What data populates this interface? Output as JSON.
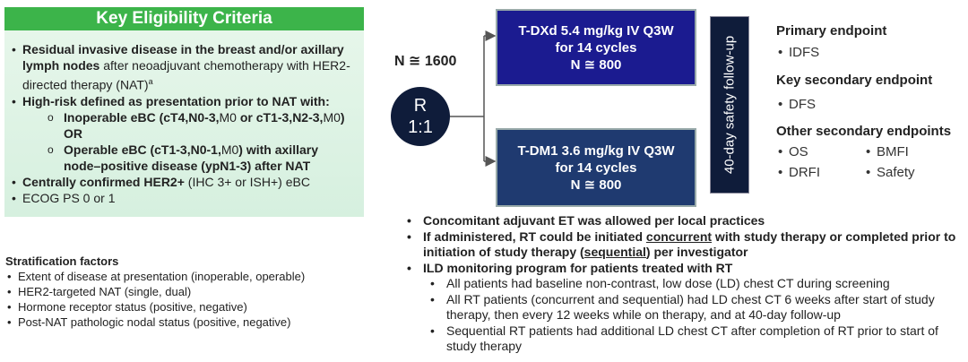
{
  "eligibility": {
    "title": "Key Eligibility Criteria",
    "items": [
      [
        "Residual invasive disease in the breast and/or axillary lymph nodes",
        " after neoadjuvant chemotherapy with HER2-directed therapy (NAT)",
        "a"
      ],
      [
        "High-risk defined as presentation prior to NAT with:"
      ],
      [
        "Centrally confirmed HER2+",
        " (IHC 3+ or ISH+) eBC"
      ],
      [
        "ECOG PS 0 or 1"
      ]
    ],
    "subitems": [
      [
        "Inoperable eBC (cT4,N0-3,",
        "M0",
        " or cT1-3,N2-3,",
        "M0",
        ")",
        "OR"
      ],
      [
        "Operable eBC (cT1-3,N0-1,",
        "M0",
        ") with axillary node–positive disease (ypN1-3) after NAT"
      ]
    ]
  },
  "stratification": {
    "title": "Stratification factors",
    "items": [
      "Extent of disease at presentation (inoperable, operable)",
      "HER2-targeted NAT (single, dual)",
      "Hormone receptor status (positive, negative)",
      "Post-NAT pathologic nodal status (positive, negative)"
    ]
  },
  "design": {
    "n": "N ≅ 1600",
    "randomization": [
      "R",
      "1:1"
    ],
    "arms": [
      [
        "T-DXd 5.4 mg/kg IV Q3W",
        "for 14 cycles",
        "N ≅ 800"
      ],
      [
        "T-DM1 3.6 mg/kg IV Q3W",
        "for 14 cycles",
        "N ≅ 800"
      ]
    ],
    "follow_up": "40-day safety follow-up"
  },
  "endpoints": [
    {
      "title": "Primary endpoint",
      "items": [
        "IDFS"
      ]
    },
    {
      "title": "Key secondary endpoint",
      "items": [
        "DFS"
      ]
    },
    {
      "title": "Other secondary endpoints",
      "items": [
        "OS",
        "BMFI",
        "DRFI",
        "Safety"
      ]
    }
  ],
  "notes": {
    "items": [
      [
        "Concomitant adjuvant ET was allowed per local practices"
      ],
      [
        "If administered, RT could be initiated ",
        "concurrent",
        " with study therapy or completed prior to initiation of study therapy (",
        "sequential",
        ") per investigator"
      ],
      [
        "ILD monitoring program for patients treated with RT"
      ]
    ],
    "subitems": [
      "All patients had baseline non-contrast, low dose (LD) chest CT during screening",
      "All RT patients (concurrent and sequential) had LD chest CT 6 weeks after start of study therapy, then every 12 weeks while on therapy, and at 40-day follow-up",
      "Sequential RT patients had additional LD chest CT after completion of RT prior to start of study therapy"
    ]
  }
}
